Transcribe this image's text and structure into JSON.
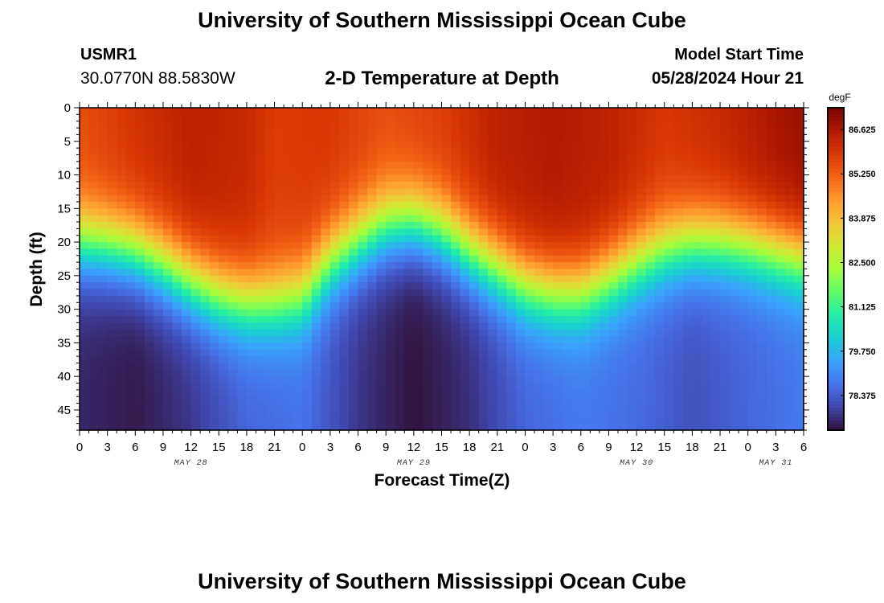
{
  "header": {
    "title": "University of Southern Mississippi Ocean Cube",
    "station_id": "USMR1",
    "coords": "30.0770N  88.5830W",
    "model_start_label": "Model Start Time",
    "model_start_value": "05/28/2024 Hour 21"
  },
  "footer": {
    "title": "University of Southern Mississippi Ocean Cube"
  },
  "colors": {
    "background": "#ffffff",
    "axis": "#000000",
    "colormap": [
      "#30123b",
      "#4145ab",
      "#4675ed",
      "#39a2fc",
      "#1bcfd4",
      "#24eca6",
      "#61fc6c",
      "#a4fc3b",
      "#d1e834",
      "#f3c63a",
      "#fe9b2d",
      "#f36315",
      "#d93806",
      "#b11901",
      "#7a0402"
    ]
  },
  "chart_data": {
    "type": "heatmap",
    "title": "2-D Temperature at Depth",
    "xlabel": "Forecast Time(Z)",
    "ylabel": "Depth (ft)",
    "x_ticks": [
      "0",
      "3",
      "6",
      "9",
      "12",
      "15",
      "18",
      "21",
      "0",
      "3",
      "6",
      "9",
      "12",
      "15",
      "18",
      "21",
      "0",
      "3",
      "6",
      "9",
      "12",
      "15",
      "18",
      "21",
      "0",
      "3",
      "6"
    ],
    "x_range_hours": [
      0,
      78
    ],
    "date_labels": [
      {
        "text": "MAY 28",
        "hour": 12
      },
      {
        "text": "MAY 29",
        "hour": 36
      },
      {
        "text": "MAY 30",
        "hour": 60
      },
      {
        "text": "MAY 31",
        "hour": 75
      }
    ],
    "y_ticks": [
      0,
      5,
      10,
      15,
      20,
      25,
      30,
      35,
      40,
      45
    ],
    "y_range": [
      0,
      48
    ],
    "y_inverted": true,
    "colorbar": {
      "unit": "degF",
      "ticks": [
        "86.625",
        "85.250",
        "83.875",
        "82.500",
        "81.125",
        "79.750",
        "78.375"
      ],
      "range": [
        77.3,
        87.3
      ]
    },
    "thermocline_depth_ft": {
      "hours": [
        0,
        3,
        6,
        9,
        12,
        15,
        18,
        21,
        24,
        27,
        30,
        33,
        36,
        39,
        42,
        45,
        48,
        51,
        54,
        57,
        60,
        63,
        66,
        69,
        72,
        75,
        78
      ],
      "values": [
        20,
        20.5,
        21.5,
        23.5,
        26,
        28,
        29,
        29,
        28,
        23,
        20,
        17.5,
        17,
        18.5,
        21.5,
        24,
        26.5,
        27.5,
        27.5,
        25.5,
        23,
        21,
        20,
        20,
        20.5,
        21.5,
        22.5
      ]
    },
    "surface_temp_degF": {
      "hours": [
        0,
        6,
        12,
        18,
        21,
        27,
        33,
        39,
        45,
        51,
        57,
        63,
        69,
        75,
        78
      ],
      "values": [
        85.5,
        86.0,
        86.4,
        86.2,
        85.8,
        85.9,
        85.5,
        85.8,
        86.4,
        86.6,
        86.4,
        85.9,
        86.2,
        86.7,
        86.9
      ]
    },
    "bottom_temp_degF": {
      "hours": [
        0,
        6,
        12,
        18,
        24,
        30,
        36,
        42,
        48,
        54,
        60,
        66,
        72,
        78
      ],
      "values": [
        77.6,
        77.4,
        77.8,
        78.5,
        78.7,
        77.8,
        77.3,
        77.7,
        78.5,
        78.8,
        78.6,
        78.2,
        78.5,
        78.8
      ]
    }
  }
}
